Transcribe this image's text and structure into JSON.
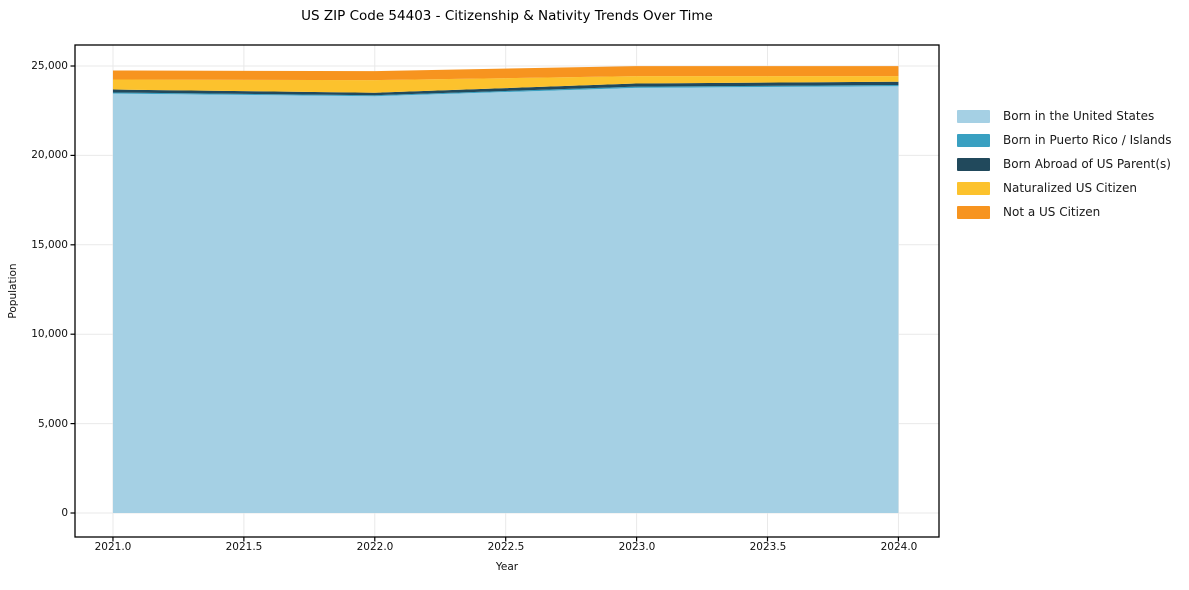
{
  "chart_data": {
    "type": "area",
    "stacked": true,
    "title": "US ZIP Code 54403 - Citizenship & Nativity Trends Over Time",
    "xlabel": "Year",
    "ylabel": "Population",
    "x": [
      2021,
      2022,
      2023,
      2024
    ],
    "series": [
      {
        "name": "Born in the United States",
        "color": "#a5d0e4",
        "values": [
          23460,
          23310,
          23780,
          23870
        ]
      },
      {
        "name": "Born in Puerto Rico / Islands",
        "color": "#39a0c1",
        "values": [
          60,
          55,
          65,
          70
        ]
      },
      {
        "name": "Born Abroad of US Parent(s)",
        "color": "#21495c",
        "values": [
          165,
          140,
          180,
          180
        ]
      },
      {
        "name": "Naturalized US Citizen",
        "color": "#fcc22d",
        "values": [
          560,
          705,
          410,
          315
        ]
      },
      {
        "name": "Not a US Citizen",
        "color": "#f7941f",
        "values": [
          505,
          505,
          560,
          560
        ]
      }
    ],
    "totals": [
      24750,
      24715,
      24995,
      24995
    ],
    "xticks": [
      2021.0,
      2021.5,
      2022.0,
      2022.5,
      2023.0,
      2023.5,
      2024.0
    ],
    "xticklabels": [
      "2021.0",
      "2021.5",
      "2022.0",
      "2022.5",
      "2023.0",
      "2023.5",
      "2024.0"
    ],
    "yticks": [
      0,
      5000,
      10000,
      15000,
      20000,
      25000
    ],
    "yticklabels": [
      "0",
      "5,000",
      "10,000",
      "15,000",
      "20,000",
      "25,000"
    ],
    "xlim": [
      2020.855,
      2024.155
    ],
    "ylim": [
      -1342,
      26175
    ],
    "grid": true,
    "grid_color": "#e9e9e9",
    "axis_color": "#000000",
    "legend_position": "right"
  }
}
